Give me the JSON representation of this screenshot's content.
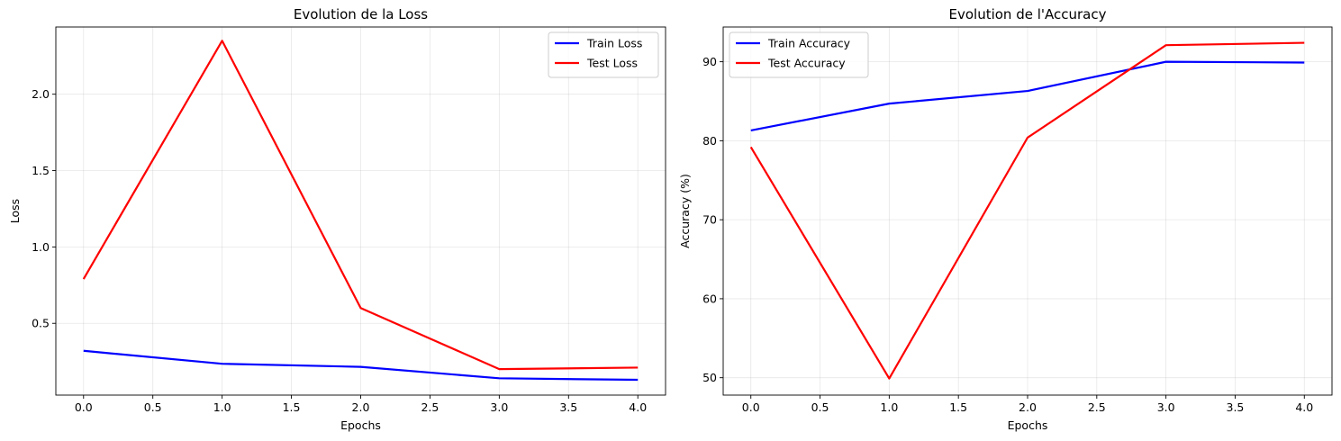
{
  "chart_data": [
    {
      "type": "line",
      "title": "Evolution de la Loss",
      "xlabel": "Epochs",
      "ylabel": "Loss",
      "xlim": [
        -0.2,
        4.2
      ],
      "ylim": [
        0.03,
        2.44
      ],
      "xticks": [
        "0.0",
        "0.5",
        "1.0",
        "1.5",
        "2.0",
        "2.5",
        "3.0",
        "3.5",
        "4.0"
      ],
      "xtick_values": [
        0,
        0.5,
        1,
        1.5,
        2,
        2.5,
        3,
        3.5,
        4
      ],
      "yticks": [
        "0.5",
        "1.0",
        "1.5",
        "2.0"
      ],
      "ytick_values": [
        0.5,
        1.0,
        1.5,
        2.0
      ],
      "grid": true,
      "legend_position": "top-right",
      "x": [
        0,
        1,
        2,
        3,
        4
      ],
      "series": [
        {
          "name": "Train Loss",
          "color": "#0000ff",
          "values": [
            0.32,
            0.235,
            0.215,
            0.14,
            0.13
          ]
        },
        {
          "name": "Test Loss",
          "color": "#ff0000",
          "values": [
            0.79,
            2.35,
            0.6,
            0.2,
            0.21
          ]
        }
      ]
    },
    {
      "type": "line",
      "title": "Evolution de l'Accuracy",
      "xlabel": "Epochs",
      "ylabel": "Accuracy (%)",
      "xlim": [
        -0.2,
        4.2
      ],
      "ylim": [
        47.8,
        94.4
      ],
      "xticks": [
        "0.0",
        "0.5",
        "1.0",
        "1.5",
        "2.0",
        "2.5",
        "3.0",
        "3.5",
        "4.0"
      ],
      "xtick_values": [
        0,
        0.5,
        1,
        1.5,
        2,
        2.5,
        3,
        3.5,
        4
      ],
      "yticks": [
        "50",
        "60",
        "70",
        "80",
        "90"
      ],
      "ytick_values": [
        50,
        60,
        70,
        80,
        90
      ],
      "grid": true,
      "legend_position": "top-left",
      "x": [
        0,
        1,
        2,
        3,
        4
      ],
      "series": [
        {
          "name": "Train Accuracy",
          "color": "#0000ff",
          "values": [
            81.3,
            84.7,
            86.3,
            90.0,
            89.9
          ]
        },
        {
          "name": "Test Accuracy",
          "color": "#ff0000",
          "values": [
            79.2,
            49.9,
            80.4,
            92.1,
            92.4
          ]
        }
      ]
    }
  ]
}
